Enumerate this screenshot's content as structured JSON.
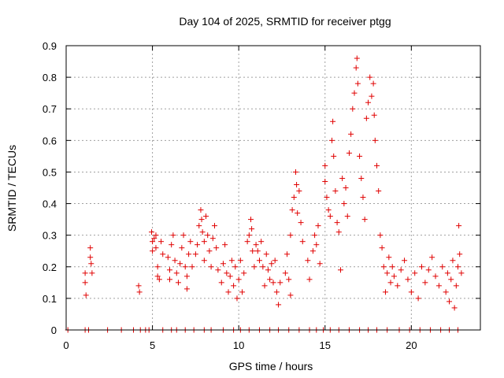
{
  "chart_data": {
    "type": "scatter",
    "title": "Day 104 of 2025, SRMTID for receiver ptgg",
    "xlabel": "GPS time / hours",
    "ylabel": "SRMTID / TECUs",
    "xlim": [
      0,
      24
    ],
    "ylim": [
      0,
      0.9
    ],
    "xticks": [
      0,
      5,
      10,
      15,
      20
    ],
    "yticks": [
      0,
      0.1,
      0.2,
      0.3,
      0.4,
      0.5,
      0.6,
      0.7,
      0.8,
      0.9
    ],
    "xtick_labels": [
      "0",
      "5",
      "10",
      "15",
      "20"
    ],
    "ytick_labels": [
      "0",
      "0.1",
      "0.2",
      "0.3",
      "0.4",
      "0.5",
      "0.6",
      "0.7",
      "0.8",
      "0.9"
    ],
    "grid": true,
    "marker": "+",
    "color": "#e00000",
    "series": [
      {
        "name": "SRMTID",
        "points": [
          [
            1.1,
            0.18
          ],
          [
            1.1,
            0.15
          ],
          [
            1.15,
            0.11
          ],
          [
            1.4,
            0.26
          ],
          [
            1.4,
            0.23
          ],
          [
            1.45,
            0.21
          ],
          [
            1.5,
            0.18
          ],
          [
            4.2,
            0.14
          ],
          [
            4.25,
            0.12
          ],
          [
            4.95,
            0.31
          ],
          [
            5.0,
            0.28
          ],
          [
            5.0,
            0.25
          ],
          [
            5.1,
            0.29
          ],
          [
            5.2,
            0.26
          ],
          [
            5.2,
            0.3
          ],
          [
            5.3,
            0.2
          ],
          [
            5.3,
            0.17
          ],
          [
            5.4,
            0.16
          ],
          [
            5.5,
            0.28
          ],
          [
            5.6,
            0.24
          ],
          [
            5.9,
            0.23
          ],
          [
            6.0,
            0.19
          ],
          [
            6.0,
            0.16
          ],
          [
            6.1,
            0.27
          ],
          [
            6.2,
            0.3
          ],
          [
            6.3,
            0.22
          ],
          [
            6.4,
            0.18
          ],
          [
            6.5,
            0.15
          ],
          [
            6.6,
            0.21
          ],
          [
            6.7,
            0.26
          ],
          [
            6.8,
            0.3
          ],
          [
            6.9,
            0.2
          ],
          [
            7.0,
            0.17
          ],
          [
            7.0,
            0.13
          ],
          [
            7.1,
            0.24
          ],
          [
            7.2,
            0.28
          ],
          [
            7.3,
            0.2
          ],
          [
            7.5,
            0.24
          ],
          [
            7.6,
            0.27
          ],
          [
            7.7,
            0.33
          ],
          [
            7.8,
            0.38
          ],
          [
            7.85,
            0.35
          ],
          [
            7.9,
            0.31
          ],
          [
            8.0,
            0.28
          ],
          [
            8.0,
            0.22
          ],
          [
            8.1,
            0.36
          ],
          [
            8.2,
            0.3
          ],
          [
            8.3,
            0.25
          ],
          [
            8.4,
            0.2
          ],
          [
            8.5,
            0.29
          ],
          [
            8.6,
            0.33
          ],
          [
            8.7,
            0.26
          ],
          [
            8.8,
            0.19
          ],
          [
            9.0,
            0.15
          ],
          [
            9.1,
            0.21
          ],
          [
            9.2,
            0.27
          ],
          [
            9.3,
            0.18
          ],
          [
            9.4,
            0.12
          ],
          [
            9.5,
            0.17
          ],
          [
            9.6,
            0.22
          ],
          [
            9.7,
            0.14
          ],
          [
            9.8,
            0.2
          ],
          [
            9.9,
            0.1
          ],
          [
            10.0,
            0.16
          ],
          [
            10.1,
            0.22
          ],
          [
            10.2,
            0.12
          ],
          [
            10.3,
            0.18
          ],
          [
            10.5,
            0.28
          ],
          [
            10.6,
            0.3
          ],
          [
            10.7,
            0.35
          ],
          [
            10.75,
            0.32
          ],
          [
            10.8,
            0.25
          ],
          [
            10.9,
            0.2
          ],
          [
            11.0,
            0.27
          ],
          [
            11.1,
            0.25
          ],
          [
            11.2,
            0.22
          ],
          [
            11.3,
            0.28
          ],
          [
            11.4,
            0.2
          ],
          [
            11.5,
            0.14
          ],
          [
            11.6,
            0.24
          ],
          [
            11.7,
            0.19
          ],
          [
            11.8,
            0.16
          ],
          [
            11.9,
            0.21
          ],
          [
            12.0,
            0.15
          ],
          [
            12.1,
            0.22
          ],
          [
            12.2,
            0.12
          ],
          [
            12.3,
            0.08
          ],
          [
            12.4,
            0.15
          ],
          [
            12.7,
            0.18
          ],
          [
            12.8,
            0.24
          ],
          [
            12.9,
            0.16
          ],
          [
            13.0,
            0.11
          ],
          [
            13.0,
            0.3
          ],
          [
            13.1,
            0.38
          ],
          [
            13.2,
            0.42
          ],
          [
            13.3,
            0.5
          ],
          [
            13.35,
            0.46
          ],
          [
            13.4,
            0.37
          ],
          [
            13.5,
            0.44
          ],
          [
            13.6,
            0.34
          ],
          [
            13.7,
            0.28
          ],
          [
            14.0,
            0.22
          ],
          [
            14.1,
            0.16
          ],
          [
            14.3,
            0.25
          ],
          [
            14.4,
            0.3
          ],
          [
            14.5,
            0.27
          ],
          [
            14.6,
            0.33
          ],
          [
            14.7,
            0.21
          ],
          [
            15.0,
            0.52
          ],
          [
            15.0,
            0.47
          ],
          [
            15.1,
            0.42
          ],
          [
            15.2,
            0.38
          ],
          [
            15.3,
            0.36
          ],
          [
            15.4,
            0.6
          ],
          [
            15.45,
            0.66
          ],
          [
            15.5,
            0.55
          ],
          [
            15.6,
            0.44
          ],
          [
            15.7,
            0.34
          ],
          [
            15.8,
            0.31
          ],
          [
            15.9,
            0.19
          ],
          [
            16.0,
            0.48
          ],
          [
            16.1,
            0.4
          ],
          [
            16.2,
            0.45
          ],
          [
            16.3,
            0.36
          ],
          [
            16.4,
            0.56
          ],
          [
            16.5,
            0.62
          ],
          [
            16.6,
            0.7
          ],
          [
            16.7,
            0.75
          ],
          [
            16.8,
            0.83
          ],
          [
            16.85,
            0.86
          ],
          [
            16.9,
            0.78
          ],
          [
            17.0,
            0.55
          ],
          [
            17.1,
            0.48
          ],
          [
            17.2,
            0.42
          ],
          [
            17.3,
            0.35
          ],
          [
            17.4,
            0.67
          ],
          [
            17.5,
            0.72
          ],
          [
            17.6,
            0.8
          ],
          [
            17.7,
            0.74
          ],
          [
            17.8,
            0.78
          ],
          [
            17.85,
            0.68
          ],
          [
            17.9,
            0.6
          ],
          [
            18.0,
            0.52
          ],
          [
            18.1,
            0.44
          ],
          [
            18.2,
            0.3
          ],
          [
            18.3,
            0.26
          ],
          [
            18.4,
            0.2
          ],
          [
            18.5,
            0.12
          ],
          [
            18.6,
            0.18
          ],
          [
            18.7,
            0.23
          ],
          [
            18.8,
            0.15
          ],
          [
            18.9,
            0.2
          ],
          [
            19.0,
            0.17
          ],
          [
            19.2,
            0.14
          ],
          [
            19.4,
            0.19
          ],
          [
            19.6,
            0.22
          ],
          [
            19.8,
            0.16
          ],
          [
            20.0,
            0.12
          ],
          [
            20.2,
            0.18
          ],
          [
            20.4,
            0.1
          ],
          [
            20.6,
            0.2
          ],
          [
            20.8,
            0.15
          ],
          [
            21.0,
            0.19
          ],
          [
            21.2,
            0.23
          ],
          [
            21.4,
            0.17
          ],
          [
            21.6,
            0.14
          ],
          [
            21.8,
            0.2
          ],
          [
            22.0,
            0.12
          ],
          [
            22.1,
            0.18
          ],
          [
            22.2,
            0.09
          ],
          [
            22.3,
            0.16
          ],
          [
            22.4,
            0.22
          ],
          [
            22.5,
            0.07
          ],
          [
            22.6,
            0.14
          ],
          [
            22.7,
            0.2
          ],
          [
            22.75,
            0.33
          ],
          [
            22.8,
            0.24
          ],
          [
            22.9,
            0.18
          ],
          [
            0.1,
            0.0
          ],
          [
            1.1,
            0.0
          ],
          [
            1.3,
            0.0
          ],
          [
            2.4,
            0.0
          ],
          [
            3.2,
            0.0
          ],
          [
            3.9,
            0.0
          ],
          [
            4.3,
            0.0
          ],
          [
            4.6,
            0.0
          ],
          [
            4.8,
            0.0
          ],
          [
            5.6,
            0.0
          ],
          [
            6.1,
            0.0
          ],
          [
            6.4,
            0.0
          ],
          [
            6.9,
            0.0
          ],
          [
            7.4,
            0.0
          ],
          [
            8.0,
            0.0
          ],
          [
            8.4,
            0.0
          ],
          [
            9.1,
            0.0
          ],
          [
            9.7,
            0.0
          ],
          [
            10.1,
            0.0
          ],
          [
            10.6,
            0.0
          ],
          [
            11.2,
            0.0
          ],
          [
            11.8,
            0.0
          ],
          [
            12.3,
            0.0
          ],
          [
            12.9,
            0.0
          ],
          [
            13.5,
            0.0
          ],
          [
            14.1,
            0.0
          ],
          [
            14.5,
            0.0
          ],
          [
            14.9,
            0.0
          ],
          [
            15.3,
            0.0
          ],
          [
            15.8,
            0.0
          ],
          [
            16.4,
            0.0
          ],
          [
            17.0,
            0.0
          ],
          [
            17.5,
            0.0
          ],
          [
            18.0,
            0.0
          ],
          [
            18.6,
            0.0
          ],
          [
            19.3,
            0.0
          ],
          [
            19.9,
            0.0
          ],
          [
            20.5,
            0.0
          ],
          [
            21.1,
            0.0
          ],
          [
            21.7,
            0.0
          ],
          [
            22.2,
            0.0
          ],
          [
            22.7,
            0.0
          ]
        ]
      }
    ]
  }
}
